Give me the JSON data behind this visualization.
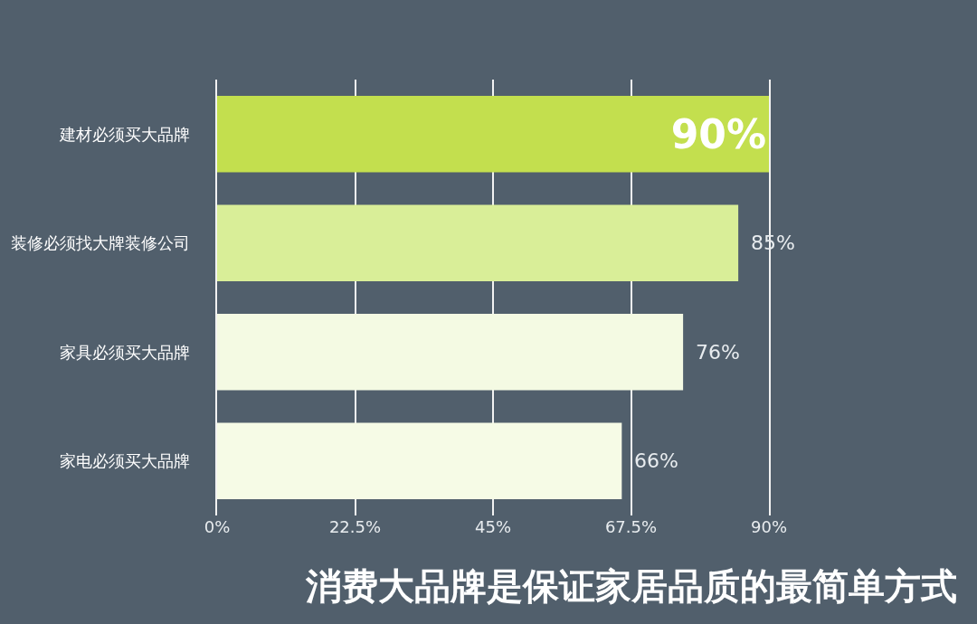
{
  "chart_data": {
    "type": "bar",
    "orientation": "horizontal",
    "title": "消费大品牌是保证家居品质的最简单方式",
    "categories": [
      "建材必须买大品牌",
      "装修必须找大牌装修公司",
      "家具必须买大品牌",
      "家电必须买大品牌"
    ],
    "values": [
      90,
      85,
      76,
      66
    ],
    "value_labels": [
      "90%",
      "85%",
      "76%",
      "66%"
    ],
    "colors": [
      "#c3df4e",
      "#d9ee98",
      "#f4fae3",
      "#f6fbe6"
    ],
    "xlim": [
      0,
      90
    ],
    "xticks": [
      {
        "value": 0,
        "label": "0%"
      },
      {
        "value": 22.5,
        "label": "22.5%"
      },
      {
        "value": 45,
        "label": "45%"
      },
      {
        "value": 67.5,
        "label": "67.5%"
      },
      {
        "value": 90,
        "label": "90%"
      }
    ],
    "grid": "x"
  }
}
